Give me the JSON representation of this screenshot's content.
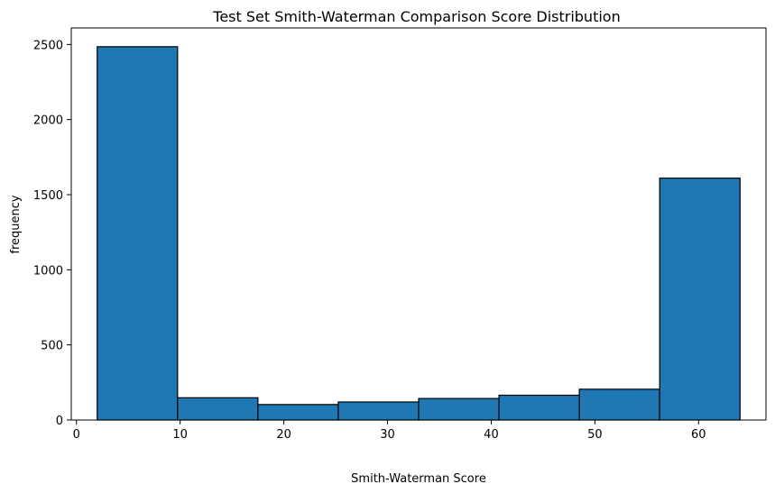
{
  "chart_data": {
    "type": "histogram",
    "title": "Test Set Smith-Waterman Comparison Score Distribution",
    "xlabel": "Smith-Waterman Score",
    "ylabel": "frequency",
    "bins": [
      {
        "x0": 2.0,
        "x1": 9.75,
        "value": 2485
      },
      {
        "x0": 9.75,
        "x1": 17.5,
        "value": 148
      },
      {
        "x0": 17.5,
        "x1": 25.25,
        "value": 103
      },
      {
        "x0": 25.25,
        "x1": 33.0,
        "value": 120
      },
      {
        "x0": 33.0,
        "x1": 40.75,
        "value": 143
      },
      {
        "x0": 40.75,
        "x1": 48.5,
        "value": 165
      },
      {
        "x0": 48.5,
        "x1": 56.25,
        "value": 205
      },
      {
        "x0": 56.25,
        "x1": 64.0,
        "value": 1610
      }
    ],
    "xlim": [
      -0.5,
      66.5
    ],
    "ylim": [
      0,
      2610
    ],
    "xticks": [
      0,
      10,
      20,
      30,
      40,
      50,
      60
    ],
    "yticks": [
      0,
      500,
      1000,
      1500,
      2000,
      2500
    ],
    "bar_color": "#1f77b4",
    "edge_color": "#000000",
    "grid": false,
    "legend": "none"
  }
}
